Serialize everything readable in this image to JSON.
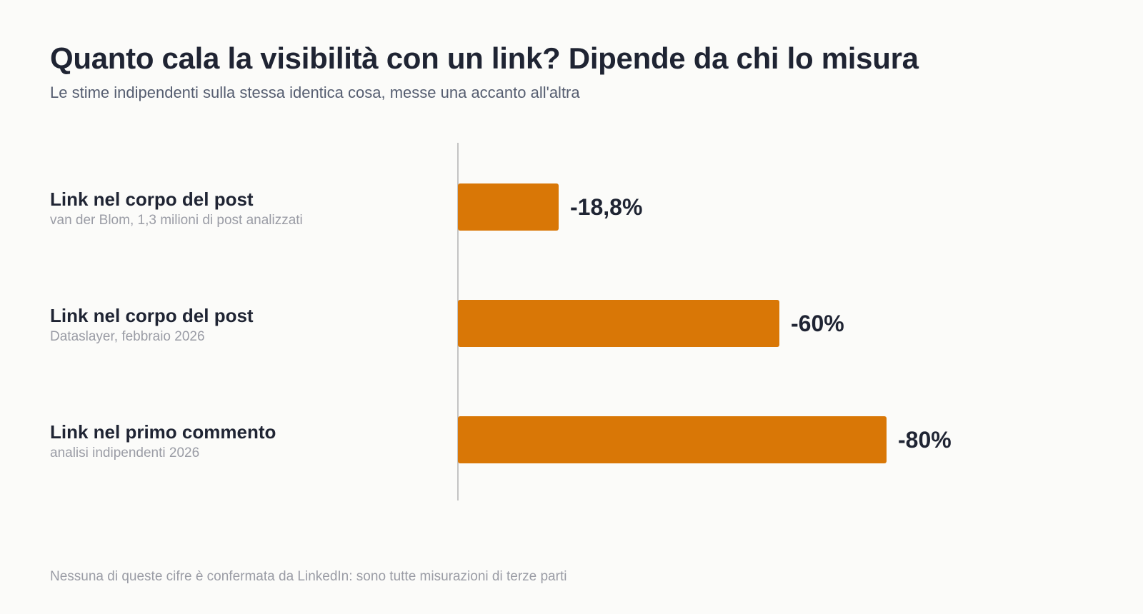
{
  "header": {
    "title": "Quanto cala la visibilità con un link? Dipende da chi lo misura",
    "subtitle": "Le stime indipendenti sulla stessa identica cosa, messe una accanto all'altra"
  },
  "footer": {
    "note": "Nessuna di queste cifre è confermata da LinkedIn: sono tutte misurazioni di terze parti"
  },
  "colors": {
    "bar": "#d97706",
    "axis": "#c4c4c4",
    "text": "#1f2433",
    "muted": "#9a9ca5"
  },
  "chart_data": {
    "type": "bar",
    "orientation": "horizontal",
    "categories": [
      "Link nel corpo del post",
      "Link nel corpo del post",
      "Link nel primo commento"
    ],
    "category_sources": [
      "van der Blom, 1,3 milioni di post analizzati",
      "Dataslayer, febbraio 2026",
      "analisi indipendenti 2026"
    ],
    "values": [
      -18.8,
      -60,
      -80
    ],
    "value_labels": [
      "-18,8%",
      "-60%",
      "-80%"
    ],
    "unit": "%",
    "xlim": [
      0,
      -100
    ],
    "grid": false,
    "legend": "none",
    "title": "Quanto cala la visibilità con un link? Dipende da chi lo misura",
    "subtitle": "Le stime indipendenti sulla stessa identica cosa, messe una accanto all'altra"
  }
}
